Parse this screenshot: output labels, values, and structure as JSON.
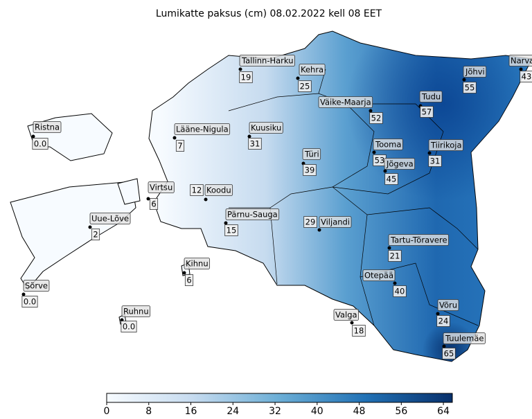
{
  "title": "Lumikatte paksus (cm) 08.02.2022 kell 08 EET",
  "stations": [
    {
      "name": "Tallinn-Harku",
      "value": "19"
    },
    {
      "name": "Kehra",
      "value": "25"
    },
    {
      "name": "Narva",
      "value": "43"
    },
    {
      "name": "Jõhvi",
      "value": "55"
    },
    {
      "name": "Ristna",
      "value": "0.0"
    },
    {
      "name": "Lääne-Nigula",
      "value": "7"
    },
    {
      "name": "Kuusiku",
      "value": "31"
    },
    {
      "name": "Väike-Maarja",
      "value": "52"
    },
    {
      "name": "Tudu",
      "value": "57"
    },
    {
      "name": "Tooma",
      "value": "53"
    },
    {
      "name": "Tiirikoja",
      "value": "31"
    },
    {
      "name": "Türi",
      "value": "39"
    },
    {
      "name": "Jõgeva",
      "value": "45"
    },
    {
      "name": "Virtsu",
      "value": "6"
    },
    {
      "name": "Koodu",
      "value": "12"
    },
    {
      "name": "Uue-Lõve",
      "value": "2"
    },
    {
      "name": "Pärnu-Sauga",
      "value": "15"
    },
    {
      "name": "Viljandi",
      "value": "29"
    },
    {
      "name": "Tartu-Tõravere",
      "value": "21"
    },
    {
      "name": "Kihnu",
      "value": "6"
    },
    {
      "name": "Sõrve",
      "value": "0.0"
    },
    {
      "name": "Otepää",
      "value": "40"
    },
    {
      "name": "Ruhnu",
      "value": "0.0"
    },
    {
      "name": "Võru",
      "value": "24"
    },
    {
      "name": "Valga",
      "value": "18"
    },
    {
      "name": "Tuulemäe",
      "value": "65"
    }
  ],
  "colorbar": {
    "range": [
      0,
      65.7
    ],
    "ticks": [
      0,
      8,
      16,
      24,
      32,
      40,
      48,
      56,
      64
    ]
  }
}
